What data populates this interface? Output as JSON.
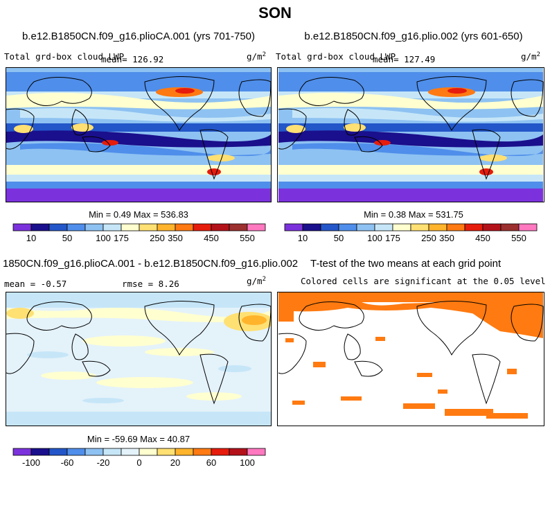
{
  "figure": {
    "title": "SON"
  },
  "chart_data": [
    {
      "type": "heatmap",
      "title": "b.e12.B1850CN.f09_g16.plioCA.001 (yrs 701-750)",
      "subtitle_left": "Total grd-box cloud LWP",
      "mean_label": "mean= 126.92",
      "units": "g/m",
      "units_exp": "2",
      "stats": "Min =   0.49 Max = 536.83",
      "min": 0.49,
      "max": 536.83,
      "mean": 126.92,
      "colorbar": {
        "ticks": [
          "10",
          "50",
          "100",
          "175",
          "250",
          "350",
          "450",
          "550"
        ],
        "colors": [
          "#7b32dc",
          "#1a0f8c",
          "#2356c8",
          "#4f8eea",
          "#8ec2f2",
          "#c6e6f8",
          "#ffffd0",
          "#ffe073",
          "#ffb42c",
          "#ff7a12",
          "#e61c0c",
          "#b4121a",
          "#9c2f2f",
          "#ff78c0"
        ]
      }
    },
    {
      "type": "heatmap",
      "title": "b.e12.B1850CN.f09_g16.plio.002 (yrs 601-650)",
      "subtitle_left": "Total grd-box cloud LWP",
      "mean_label": "mean= 127.49",
      "units": "g/m",
      "units_exp": "2",
      "stats": "Min =   0.38 Max = 531.75",
      "min": 0.38,
      "max": 531.75,
      "mean": 127.49,
      "colorbar": {
        "ticks": [
          "10",
          "50",
          "100",
          "175",
          "250",
          "350",
          "450",
          "550"
        ],
        "colors": [
          "#7b32dc",
          "#1a0f8c",
          "#2356c8",
          "#4f8eea",
          "#8ec2f2",
          "#c6e6f8",
          "#ffffd0",
          "#ffe073",
          "#ffb42c",
          "#ff7a12",
          "#e61c0c",
          "#b4121a",
          "#9c2f2f",
          "#ff78c0"
        ]
      }
    },
    {
      "type": "heatmap",
      "title": "1850CN.f09_g16.plioCA.001 - b.e12.B1850CN.f09_g16.plio.002",
      "mean_label": "mean =  -0.57",
      "rmse_label": "rmse =   8.26",
      "units": "g/m",
      "units_exp": "2",
      "stats": "Min = -59.69 Max =  40.87",
      "min": -59.69,
      "max": 40.87,
      "mean": -0.57,
      "rmse": 8.26,
      "colorbar": {
        "ticks": [
          "-100",
          "-60",
          "-20",
          "0",
          "20",
          "60",
          "100"
        ],
        "colors": [
          "#7b32dc",
          "#1a0f8c",
          "#2356c8",
          "#4f8eea",
          "#8ec2f2",
          "#c6e6f8",
          "#e4f2fa",
          "#ffffd0",
          "#ffe073",
          "#ffb42c",
          "#ff7a12",
          "#e61c0c",
          "#b4121a",
          "#ff78c0"
        ]
      }
    },
    {
      "type": "heatmap",
      "title": "T-test of the two means at each grid point",
      "subtitle": "Colored cells are significant at the 0.05 level",
      "significant_color": "#ff7a10"
    }
  ]
}
